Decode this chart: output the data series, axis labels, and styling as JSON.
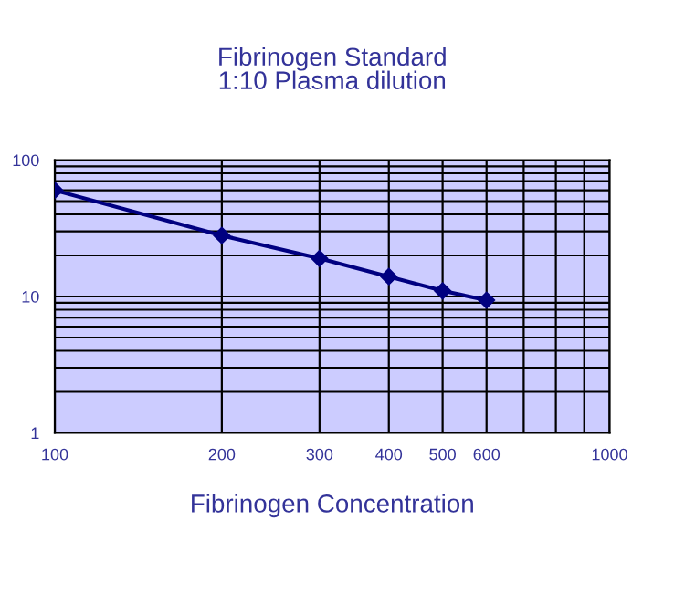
{
  "chart_data": {
    "type": "line",
    "title": "Fibrinogen Standard\n1:10 Plasma dilution",
    "xlabel": "Fibrinogen Concentration",
    "x": [
      100,
      200,
      300,
      400,
      500,
      600
    ],
    "series": [
      {
        "color": "#000080",
        "values": [
          60,
          28,
          19,
          14,
          11,
          9.4
        ]
      }
    ],
    "log": "xy",
    "xlim": [
      100,
      1000
    ],
    "ylim": [
      1,
      100
    ],
    "xticks": [
      100,
      200,
      300,
      400,
      500,
      600,
      {
        "value": 700,
        "label": null
      },
      {
        "value": 800,
        "label": null
      },
      {
        "value": 900,
        "label": null
      },
      1000
    ],
    "yticks": [
      1,
      {
        "value": 2,
        "label": null
      },
      {
        "value": 3,
        "label": null
      },
      {
        "value": 4,
        "label": null
      },
      {
        "value": 5,
        "label": null
      },
      {
        "value": 6,
        "label": null
      },
      {
        "value": 7,
        "label": null
      },
      {
        "value": 8,
        "label": null
      },
      {
        "value": 9,
        "label": null
      },
      10,
      {
        "value": 20,
        "label": null
      },
      {
        "value": 30,
        "label": null
      },
      {
        "value": 40,
        "label": null
      },
      {
        "value": 50,
        "label": null
      },
      {
        "value": 60,
        "label": null
      },
      {
        "value": 70,
        "label": null
      },
      {
        "value": 80,
        "label": null
      },
      {
        "value": 90,
        "label": null
      },
      100
    ],
    "grid": true,
    "marker": "diamond",
    "line_style": "solid"
  }
}
